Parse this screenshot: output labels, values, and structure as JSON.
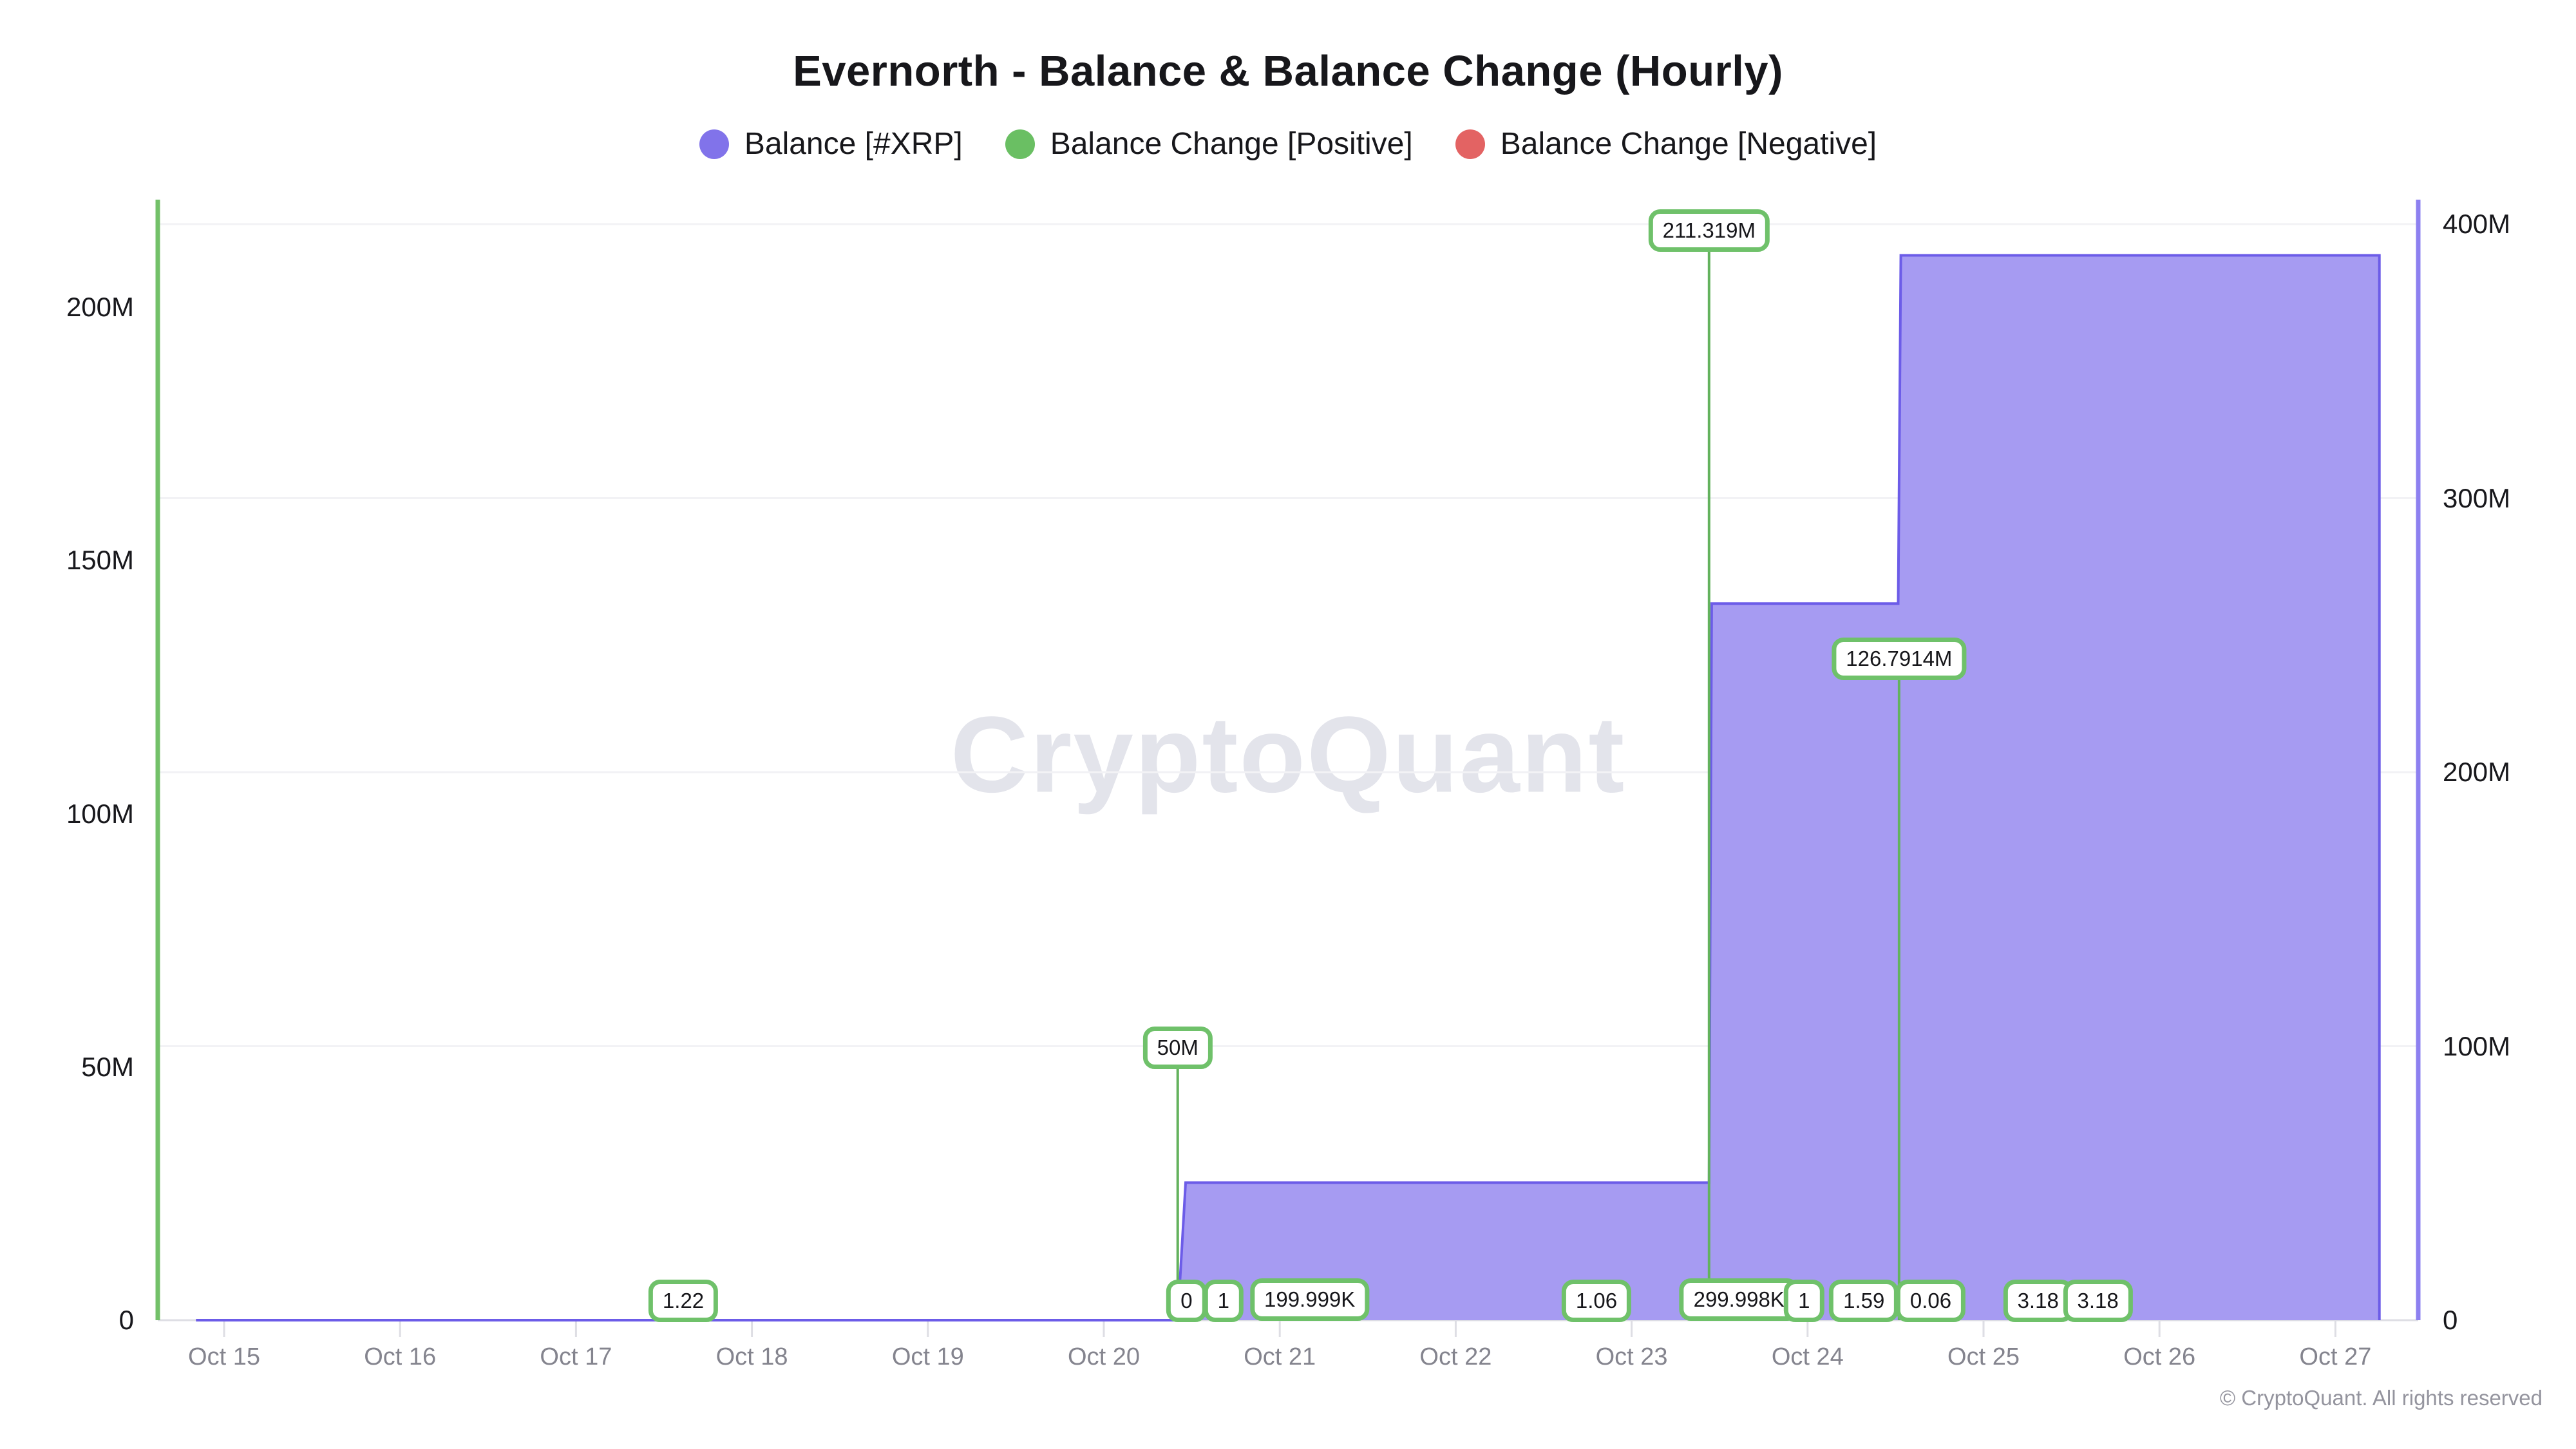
{
  "title": "Evernorth - Balance & Balance Change (Hourly)",
  "watermark": "CryptoQuant",
  "footer": "© CryptoQuant. All rights reserved",
  "legend": [
    {
      "label": "Balance [#XRP]",
      "color": "#8173ea"
    },
    {
      "label": "Balance Change [Positive]",
      "color": "#6abf63"
    },
    {
      "label": "Balance Change [Negative]",
      "color": "#e36363"
    }
  ],
  "colors": {
    "area_fill": "#a69bf2",
    "area_stroke": "#6c5ce8",
    "left_spine": "#73c169",
    "right_spine": "#8d80f0",
    "bar_green": "#63b25d",
    "gridline": "#f2f2f5",
    "baseline": "#dedee4",
    "tick": "#dedee4"
  },
  "chart_data": {
    "type": "area",
    "title": "Evernorth - Balance & Balance Change (Hourly)",
    "x_ticks": [
      "Oct 15",
      "Oct 16",
      "Oct 17",
      "Oct 18",
      "Oct 19",
      "Oct 20",
      "Oct 21",
      "Oct 22",
      "Oct 23",
      "Oct 24",
      "Oct 25",
      "Oct 26",
      "Oct 27"
    ],
    "left_axis": {
      "title": "Balance Change",
      "ticks": [
        [
          0,
          "0"
        ],
        [
          50000000,
          "50M"
        ],
        [
          100000000,
          "100M"
        ],
        [
          150000000,
          "150M"
        ],
        [
          200000000,
          "200M"
        ]
      ],
      "range": [
        0,
        221000000
      ]
    },
    "right_axis": {
      "title": "Balance",
      "ticks": [
        [
          0,
          "0"
        ],
        [
          100000000,
          "100M"
        ],
        [
          200000000,
          "200M"
        ],
        [
          300000000,
          "300M"
        ],
        [
          400000000,
          "400M"
        ]
      ],
      "range": [
        0,
        409000000
      ]
    },
    "grid": "horizontal-right-axis-ticks",
    "legend_position": "top-center",
    "series": [
      {
        "name": "Balance [#XRP]",
        "type": "area",
        "axis": "right",
        "points": [
          [
            -0.16,
            1.22
          ],
          [
            5.42,
            1.22
          ],
          [
            5.465,
            50200002
          ],
          [
            8.44,
            50200002
          ],
          [
            8.455,
            261519002
          ],
          [
            9.515,
            261519002
          ],
          [
            9.53,
            388610402
          ],
          [
            12.25,
            388610402
          ]
        ]
      },
      {
        "name": "Balance Change [Positive]",
        "type": "bar",
        "axis": "left",
        "bars": [
          {
            "d": 2.61,
            "value": 1.22,
            "label": "1.22"
          },
          {
            "d": 5.42,
            "value": 50000000,
            "label": "50M"
          },
          {
            "d": 5.47,
            "value": 0,
            "label": "0"
          },
          {
            "d": 5.68,
            "value": 1,
            "label": "1"
          },
          {
            "d": 6.17,
            "value": 199999,
            "label": "199.999K"
          },
          {
            "d": 7.8,
            "value": 1.06,
            "label": "1.06"
          },
          {
            "d": 8.44,
            "value": 211319000,
            "label": "211.319M"
          },
          {
            "d": 8.61,
            "value": 299998,
            "label": "299.998K"
          },
          {
            "d": 8.98,
            "value": 1,
            "label": "1"
          },
          {
            "d": 9.32,
            "value": 1.59,
            "label": "1.59"
          },
          {
            "d": 9.52,
            "value": 126791400,
            "label": "126.7914M"
          },
          {
            "d": 9.7,
            "value": 0.06,
            "label": "0.06"
          },
          {
            "d": 10.31,
            "value": 3.18,
            "label": "3.18"
          },
          {
            "d": 10.65,
            "value": 3.18,
            "label": "3.18"
          }
        ]
      },
      {
        "name": "Balance Change [Negative]",
        "type": "bar",
        "axis": "left",
        "bars": []
      }
    ]
  }
}
